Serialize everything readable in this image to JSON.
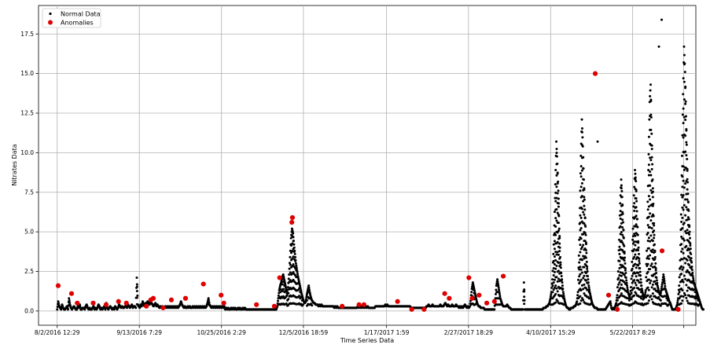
{
  "chart_data": {
    "type": "scatter",
    "title": "",
    "xlabel": "Time Series Data",
    "ylabel": "Nitrates Data",
    "grid": true,
    "legend_position": "top-left",
    "x_unit": "days since 8/2/2016 12:29",
    "xlim": [
      -9.5,
      325
    ],
    "ylim": [
      -0.9,
      19.3
    ],
    "x_ticks": [
      {
        "value": 0,
        "label": "8/2/2016 12:29"
      },
      {
        "value": 41.8,
        "label": "9/13/2016 7:29"
      },
      {
        "value": 83.6,
        "label": "10/25/2016 2:29"
      },
      {
        "value": 125.3,
        "label": "12/5/2016 18:59"
      },
      {
        "value": 167.6,
        "label": "1/17/2017 1:59"
      },
      {
        "value": 209.3,
        "label": "2/27/2017 18:29"
      },
      {
        "value": 251.1,
        "label": "4/10/2017 15:29"
      },
      {
        "value": 292.8,
        "label": "5/22/2017 8:29"
      },
      {
        "value": 318.8,
        "label": ""
      }
    ],
    "y_ticks": [
      {
        "value": 0.0,
        "label": "0.0"
      },
      {
        "value": 2.5,
        "label": "2.5"
      },
      {
        "value": 5.0,
        "label": "5.0"
      },
      {
        "value": 7.5,
        "label": "7.5"
      },
      {
        "value": 10.0,
        "label": "10.0"
      },
      {
        "value": 12.5,
        "label": "12.5"
      },
      {
        "value": 15.0,
        "label": "15.0"
      },
      {
        "value": 17.5,
        "label": "17.5"
      }
    ],
    "series": [
      {
        "name": "Normal Data",
        "color": "#000000",
        "marker": "small-dot",
        "x_start": 0,
        "x_step": 0.5,
        "values": [
          0.1,
          0.6,
          0.3,
          0.2,
          0.1,
          0.4,
          0.2,
          0.1,
          0.1,
          0.2,
          0.3,
          0.1,
          0.8,
          0.4,
          0.2,
          0.1,
          0.2,
          0.3,
          0.2,
          0.1,
          0.1,
          0.3,
          0.2,
          0.4,
          0.1,
          0.1,
          0.2,
          0.2,
          0.1,
          0.3,
          0.4,
          0.2,
          0.1,
          0.2,
          0.1,
          0.1,
          0.2,
          0.3,
          0.1,
          0.2,
          0.1,
          0.2,
          0.4,
          0.3,
          0.1,
          0.2,
          0.1,
          0.2,
          0.3,
          0.1,
          0.5,
          0.2,
          0.1,
          0.2,
          0.3,
          0.2,
          0.1,
          0.2,
          0.1,
          0.3,
          0.2,
          0.1,
          0.2,
          0.4,
          0.3,
          0.2,
          0.3,
          0.2,
          0.2,
          0.3,
          0.3,
          0.2,
          0.4,
          0.3,
          0.2,
          0.3,
          0.4,
          0.2,
          0.3,
          0.3,
          0.2,
          2.1,
          0.4,
          0.3,
          0.2,
          0.4,
          0.3,
          0.6,
          0.4,
          0.3,
          0.5,
          0.4,
          0.6,
          0.5,
          0.4,
          0.6,
          0.5,
          0.4,
          0.3,
          0.4,
          0.5,
          0.3,
          0.4,
          0.3,
          0.2,
          0.3,
          0.2,
          0.3,
          0.2,
          0.2,
          0.3,
          0.2,
          0.3,
          0.2,
          0.3,
          0.2,
          0.3,
          0.2,
          0.3,
          0.2,
          0.3,
          0.2,
          0.3,
          0.2,
          0.3,
          0.4,
          0.6,
          0.4,
          0.3,
          0.2,
          0.3,
          0.2,
          0.2,
          0.3,
          0.2,
          0.3,
          0.2,
          0.2,
          0.3,
          0.2,
          0.3,
          0.2,
          0.3,
          0.2,
          0.3,
          0.2,
          0.3,
          0.2,
          0.3,
          0.2,
          0.3,
          0.2,
          0.3,
          0.5,
          0.8,
          0.4,
          0.3,
          0.2,
          0.3,
          0.2,
          0.3,
          0.2,
          0.3,
          0.2,
          0.3,
          0.2,
          0.3,
          0.2,
          0.3,
          0.2,
          0.3,
          0.1,
          0.2,
          0.1,
          0.2,
          0.1,
          0.1,
          0.2,
          0.1,
          0.2,
          0.1,
          0.2,
          0.1,
          0.1,
          0.2,
          0.1,
          0.2,
          0.1,
          0.1,
          0.2,
          0.1,
          0.2,
          0.1,
          0.1,
          0.1,
          0.1,
          0.1,
          0.1,
          0.1,
          0.1,
          0.1,
          0.1,
          0.1,
          0.1,
          0.1,
          0.1,
          0.1,
          0.1,
          0.1,
          0.1,
          0.1,
          0.1,
          0.1,
          0.1,
          0.1,
          0.1,
          0.1,
          0.1,
          0.1,
          0.1,
          0.1,
          0.1,
          0.1,
          0.1,
          0.3,
          0.8,
          1.3,
          1.6,
          1.8,
          2.1,
          2.3,
          2.0,
          1.7,
          1.4,
          1.0,
          1.5,
          2.3,
          3.4,
          4.6,
          5.2,
          4.9,
          4.2,
          3.6,
          3.0,
          2.6,
          2.2,
          1.9,
          1.6,
          1.3,
          1.0,
          0.8,
          0.6,
          0.5,
          0.6,
          1.0,
          1.3,
          1.6,
          1.2,
          0.9,
          0.7,
          0.6,
          0.5,
          0.5,
          0.4,
          0.4,
          0.4,
          0.3,
          0.4,
          0.3,
          0.4,
          0.3,
          0.3,
          0.3,
          0.3,
          0.3,
          0.3,
          0.3,
          0.3,
          0.3,
          0.3,
          0.3,
          0.3,
          0.2,
          0.3,
          0.2,
          0.3,
          0.2,
          0.2,
          0.2,
          0.2,
          0.2,
          0.2,
          0.2,
          0.2,
          0.2,
          0.2,
          0.2,
          0.2,
          0.2,
          0.2,
          0.2,
          0.2,
          0.2,
          0.2,
          0.2,
          0.2,
          0.3,
          0.2,
          0.3,
          0.2,
          0.3,
          0.2,
          0.3,
          0.2,
          0.3,
          0.2,
          0.3,
          0.2,
          0.2,
          0.2,
          0.2,
          0.2,
          0.2,
          0.2,
          0.3,
          0.3,
          0.3,
          0.3,
          0.3,
          0.3,
          0.3,
          0.3,
          0.3,
          0.3,
          0.4,
          0.3,
          0.4,
          0.3,
          0.3,
          0.3,
          0.3,
          0.3,
          0.3,
          0.3,
          0.3,
          0.3,
          0.3,
          0.3,
          0.3,
          0.3,
          0.3,
          0.3,
          0.3,
          0.3,
          0.3,
          0.3,
          0.3,
          0.3,
          0.3,
          0.3,
          0.2,
          0.2,
          0.2,
          0.2,
          0.2,
          0.2,
          0.2,
          0.2,
          0.2,
          0.2,
          0.2,
          0.2,
          0.2,
          0.2,
          0.2,
          0.2,
          0.3,
          0.3,
          0.4,
          0.3,
          0.3,
          0.3,
          0.4,
          0.3,
          0.3,
          0.3,
          0.3,
          0.3,
          0.3,
          0.3,
          0.4,
          0.3,
          0.3,
          0.3,
          0.4,
          0.5,
          0.4,
          0.3,
          0.4,
          0.3,
          0.3,
          0.3,
          0.4,
          0.3,
          0.3,
          0.3,
          0.4,
          0.3,
          0.3,
          0.2,
          0.3,
          0.2,
          0.3,
          0.2,
          0.3,
          0.4,
          0.3,
          0.2,
          0.3,
          0.2,
          0.3,
          0.8,
          1.4,
          1.8,
          1.5,
          1.2,
          0.9,
          0.6,
          0.4,
          0.3,
          0.3,
          0.2,
          0.2,
          0.2,
          0.2,
          0.1,
          0.1,
          0.1,
          0.1,
          0.1,
          0.1,
          0.1,
          0.1,
          0.1,
          0.1,
          0.1,
          0.8,
          1.6,
          2.0,
          1.6,
          1.2,
          0.8,
          0.6,
          0.4,
          0.3,
          0.3,
          0.3,
          0.3,
          0.4,
          0.3,
          0.2,
          0.2,
          0.1,
          0.1,
          0.1,
          0.1,
          0.1,
          0.1,
          0.1,
          0.1,
          0.1,
          0.1,
          0.1,
          0.1,
          0.1,
          1.8,
          0.1,
          0.1,
          0.1,
          0.1,
          0.1,
          0.1,
          0.1,
          0.1,
          0.1,
          0.1,
          0.1,
          0.1,
          0.1,
          0.1,
          0.1,
          0.1,
          0.1,
          0.1,
          0.1,
          0.2,
          0.2,
          0.2,
          0.3,
          0.3,
          0.4,
          0.5,
          0.8,
          1.2,
          2.0,
          3.6,
          5.4,
          8.0,
          10.7,
          9.3,
          7.6,
          5.2,
          3.4,
          2.4,
          1.8,
          1.2,
          0.8,
          0.5,
          0.3,
          0.2,
          0.2,
          0.1,
          0.1,
          0.2,
          0.2,
          0.2,
          0.3,
          0.3,
          0.4,
          0.6,
          1.2,
          3.5,
          6.5,
          9.8,
          12.1,
          10.4,
          8.3,
          6.4,
          4.8,
          3.1,
          2.2,
          1.6,
          1.2,
          0.9,
          0.6,
          0.4,
          0.3,
          0.2,
          0.2,
          0.2,
          0.1,
          0.1,
          0.1,
          0.1,
          0.1,
          0.1,
          0.1,
          0.1,
          0.1,
          0.2,
          0.3,
          0.4,
          0.5,
          0.6,
          0.2,
          0.1,
          0.2,
          0.1,
          0.3,
          0.5,
          1.0,
          2.5,
          4.5,
          6.8,
          8.3,
          7.2,
          5.6,
          4.1,
          3.0,
          2.1,
          1.6,
          1.2,
          1.0,
          0.8,
          1.5,
          3.1,
          5.2,
          7.3,
          8.9,
          8.2,
          6.3,
          4.8,
          3.6,
          2.7,
          2.0,
          1.4,
          1.1,
          0.8,
          0.9,
          1.3,
          3.8,
          6.9,
          9.9,
          13.2,
          14.3,
          11.2,
          8.3,
          6.0,
          4.2,
          3.0,
          2.1,
          1.6,
          1.3,
          1.1,
          1.0,
          1.4,
          1.8,
          2.3,
          1.9,
          1.4,
          1.2,
          1.0,
          0.8,
          0.6,
          0.5,
          0.3,
          0.1,
          0.1,
          0.1,
          0.1,
          0.2,
          0.4,
          0.8,
          1.6,
          3.2,
          6.1,
          9.8,
          13.7,
          16.7,
          15.1,
          12.3,
          9.6,
          7.4,
          5.8,
          4.6,
          3.6,
          2.8,
          2.2,
          1.8,
          1.6,
          1.4,
          1.2,
          1.0,
          0.8,
          0.6,
          0.4,
          0.2,
          0.1
        ],
        "extra_points": [
          {
            "x": 307.6,
            "y": 18.4
          },
          {
            "x": 275.0,
            "y": 10.7
          },
          {
            "x": 306.2,
            "y": 16.7
          }
        ]
      },
      {
        "name": "Anomalies",
        "color": "#e00000",
        "marker": "dot",
        "points": [
          {
            "x": 0.5,
            "y": 1.6
          },
          {
            "x": 7.3,
            "y": 1.1
          },
          {
            "x": 10.2,
            "y": 0.5
          },
          {
            "x": 18.3,
            "y": 0.5
          },
          {
            "x": 24.9,
            "y": 0.4
          },
          {
            "x": 31.2,
            "y": 0.6
          },
          {
            "x": 35.2,
            "y": 0.5
          },
          {
            "x": 45.4,
            "y": 0.3
          },
          {
            "x": 47.6,
            "y": 0.7
          },
          {
            "x": 48.9,
            "y": 0.8
          },
          {
            "x": 53.9,
            "y": 0.2
          },
          {
            "x": 58.1,
            "y": 0.7
          },
          {
            "x": 65.3,
            "y": 0.8
          },
          {
            "x": 74.4,
            "y": 1.7
          },
          {
            "x": 83.4,
            "y": 1.0
          },
          {
            "x": 84.8,
            "y": 0.5
          },
          {
            "x": 101.4,
            "y": 0.4
          },
          {
            "x": 110.5,
            "y": 0.3
          },
          {
            "x": 113.2,
            "y": 2.1
          },
          {
            "x": 119.4,
            "y": 5.6
          },
          {
            "x": 119.7,
            "y": 5.9
          },
          {
            "x": 145.0,
            "y": 0.3
          },
          {
            "x": 153.6,
            "y": 0.4
          },
          {
            "x": 156.1,
            "y": 0.4
          },
          {
            "x": 173.2,
            "y": 0.6
          },
          {
            "x": 180.4,
            "y": 0.1
          },
          {
            "x": 186.7,
            "y": 0.1
          },
          {
            "x": 197.2,
            "y": 1.1
          },
          {
            "x": 199.5,
            "y": 0.8
          },
          {
            "x": 209.5,
            "y": 2.1
          },
          {
            "x": 211.2,
            "y": 0.8
          },
          {
            "x": 214.7,
            "y": 1.0
          },
          {
            "x": 218.6,
            "y": 0.5
          },
          {
            "x": 222.5,
            "y": 0.6
          },
          {
            "x": 227.0,
            "y": 2.2
          },
          {
            "x": 273.8,
            "y": 15.0
          },
          {
            "x": 280.6,
            "y": 1.0
          },
          {
            "x": 285.0,
            "y": 0.1
          },
          {
            "x": 307.8,
            "y": 3.8
          },
          {
            "x": 316.0,
            "y": 0.1
          }
        ]
      }
    ]
  }
}
